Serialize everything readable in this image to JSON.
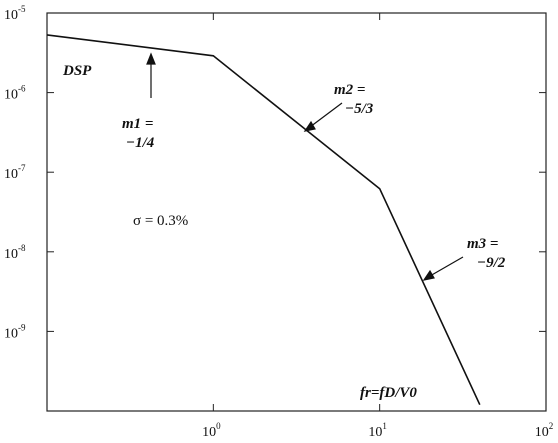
{
  "chart_data": {
    "type": "line",
    "title": "",
    "xlabel": "fr=fD/V0",
    "ylabel": "DSP",
    "xscale": "log",
    "yscale": "log",
    "xlim": [
      0.1,
      100
    ],
    "ylim": [
      1e-10,
      1e-05
    ],
    "grid": false,
    "series": [
      {
        "x": [
          0.1,
          1.0,
          10.0,
          40.0
        ],
        "y": [
          5.3e-06,
          2.9e-06,
          6.2e-08,
          1.2e-10
        ]
      }
    ],
    "x_ticks": [
      {
        "base": "10",
        "exp": "0",
        "value": 1
      },
      {
        "base": "10",
        "exp": "1",
        "value": 10
      },
      {
        "base": "10",
        "exp": "2",
        "value": 100
      }
    ],
    "y_ticks": [
      {
        "base": "10",
        "exp": "-5",
        "value": 1e-05
      },
      {
        "base": "10",
        "exp": "-6",
        "value": 1e-06
      },
      {
        "base": "10",
        "exp": "-7",
        "value": 1e-07
      },
      {
        "base": "10",
        "exp": "-8",
        "value": 1e-08
      },
      {
        "base": "10",
        "exp": "-9",
        "value": 1e-09
      }
    ],
    "annotations": {
      "m1_line1": "m1 =",
      "m1_line2": "−1/4",
      "m2_line1": "m2 =",
      "m2_line2": "−5/3",
      "m3_line1": "m3 =",
      "m3_line2": "−9/2",
      "sigma": "σ = 0.3%"
    }
  }
}
